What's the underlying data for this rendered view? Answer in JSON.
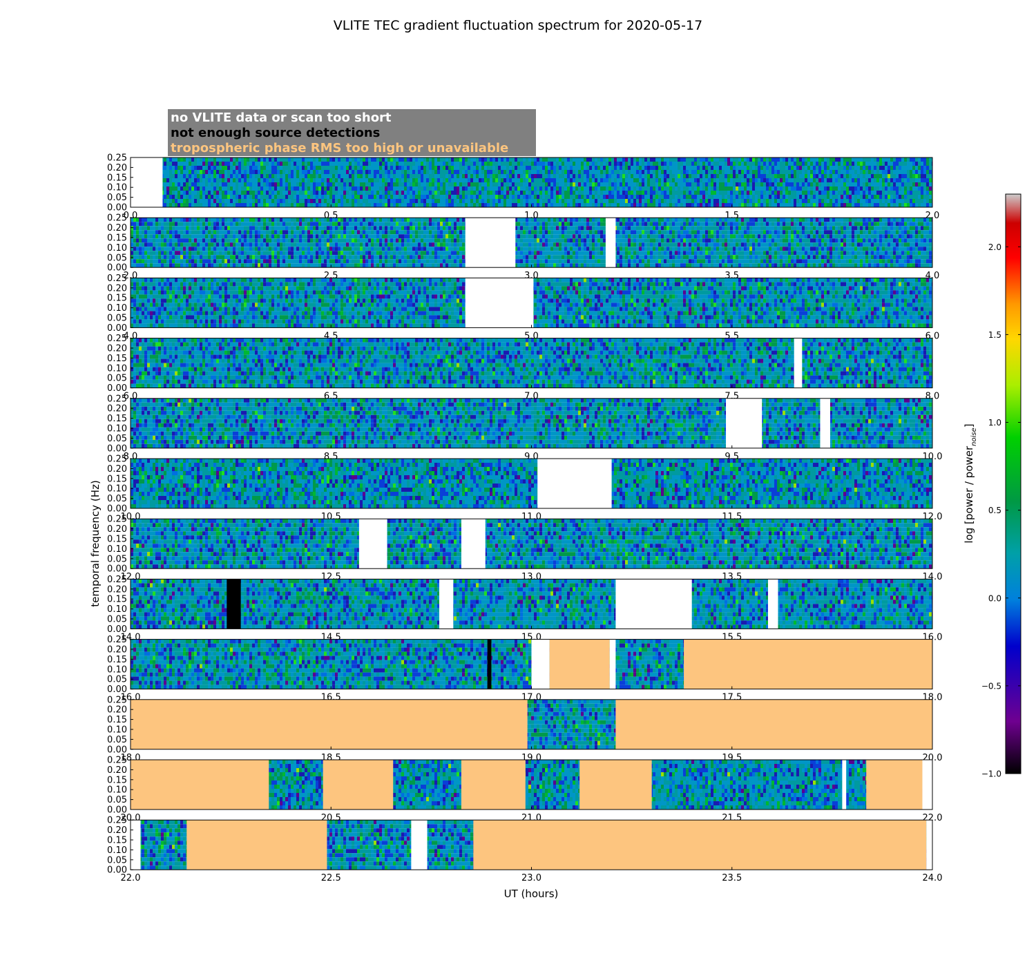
{
  "chart_data": {
    "type": "heatmap",
    "title": "VLITE TEC gradient fluctuation spectrum for 2020-05-17",
    "xlabel": "UT (hours)",
    "ylabel": "temporal frequency (Hz)",
    "ylim": [
      0,
      0.25
    ],
    "yticks": [
      "0.00",
      "0.05",
      "0.10",
      "0.15",
      "0.20",
      "0.25"
    ],
    "colorbar": {
      "label_main": "log [power / power",
      "label_sub": "noise",
      "label_end": "]",
      "range": [
        -1.0,
        2.3
      ],
      "ticks": [
        "−1.0",
        "−0.5",
        "0.0",
        "0.5",
        "1.0",
        "1.5",
        "2.0"
      ],
      "tick_values": [
        -1.0,
        -0.5,
        0.0,
        0.5,
        1.0,
        1.5,
        2.0
      ]
    },
    "legend": [
      {
        "text": "no VLITE data or scan too short",
        "color": "#ffffff"
      },
      {
        "text": "not enough source detections",
        "color": "#000000"
      },
      {
        "text": "tropospheric phase RMS too high or unavailable",
        "color": "#fdc57f"
      }
    ],
    "gap_colors": {
      "no_data": "#ffffff",
      "detections": "#000000",
      "rms": "#fdc57f"
    },
    "panels": [
      {
        "xlim": [
          0.0,
          2.0
        ],
        "xticks": [
          "0.0",
          "0.5",
          "1.0",
          "1.5",
          "2.0"
        ],
        "gaps": [
          {
            "start": 0.0,
            "end": 0.08,
            "flag": "no_data"
          }
        ]
      },
      {
        "xlim": [
          2.0,
          4.0
        ],
        "xticks": [
          "2.0",
          "2.5",
          "3.0",
          "3.5",
          "4.0"
        ],
        "gaps": [
          {
            "start": 2.835,
            "end": 2.96,
            "flag": "no_data"
          },
          {
            "start": 3.185,
            "end": 3.21,
            "flag": "no_data"
          }
        ]
      },
      {
        "xlim": [
          4.0,
          6.0
        ],
        "xticks": [
          "4.0",
          "4.5",
          "5.0",
          "5.5",
          "6.0"
        ],
        "gaps": [
          {
            "start": 4.835,
            "end": 5.005,
            "flag": "no_data"
          }
        ]
      },
      {
        "xlim": [
          6.0,
          8.0
        ],
        "xticks": [
          "6.0",
          "6.5",
          "7.0",
          "7.5",
          "8.0"
        ],
        "gaps": [
          {
            "start": 7.655,
            "end": 7.675,
            "flag": "no_data"
          }
        ]
      },
      {
        "xlim": [
          8.0,
          10.0
        ],
        "xticks": [
          "8.0",
          "8.5",
          "9.0",
          "9.5",
          "10.0"
        ],
        "gaps": [
          {
            "start": 9.485,
            "end": 9.575,
            "flag": "no_data"
          },
          {
            "start": 9.72,
            "end": 9.745,
            "flag": "no_data"
          }
        ]
      },
      {
        "xlim": [
          10.0,
          12.0
        ],
        "xticks": [
          "10.0",
          "10.5",
          "11.0",
          "11.5",
          "12.0"
        ],
        "gaps": [
          {
            "start": 11.015,
            "end": 11.2,
            "flag": "no_data"
          }
        ]
      },
      {
        "xlim": [
          12.0,
          14.0
        ],
        "xticks": [
          "12.0",
          "12.5",
          "13.0",
          "13.5",
          "14.0"
        ],
        "gaps": [
          {
            "start": 12.57,
            "end": 12.64,
            "flag": "no_data"
          },
          {
            "start": 12.825,
            "end": 12.885,
            "flag": "no_data"
          }
        ]
      },
      {
        "xlim": [
          14.0,
          16.0
        ],
        "xticks": [
          "14.0",
          "14.5",
          "15.0",
          "15.5",
          "16.0"
        ],
        "gaps": [
          {
            "start": 14.24,
            "end": 14.275,
            "flag": "detections"
          },
          {
            "start": 14.77,
            "end": 14.805,
            "flag": "no_data"
          },
          {
            "start": 15.21,
            "end": 15.4,
            "flag": "no_data"
          },
          {
            "start": 15.59,
            "end": 15.615,
            "flag": "no_data"
          }
        ]
      },
      {
        "xlim": [
          16.0,
          18.0
        ],
        "xticks": [
          "16.0",
          "16.5",
          "17.0",
          "17.5",
          "18.0"
        ],
        "gaps": [
          {
            "start": 16.89,
            "end": 16.9,
            "flag": "detections"
          },
          {
            "start": 17.0,
            "end": 17.045,
            "flag": "no_data"
          },
          {
            "start": 17.045,
            "end": 17.195,
            "flag": "rms"
          },
          {
            "start": 17.195,
            "end": 17.21,
            "flag": "no_data"
          },
          {
            "start": 17.38,
            "end": 18.0,
            "flag": "rms"
          }
        ]
      },
      {
        "xlim": [
          18.0,
          20.0
        ],
        "xticks": [
          "18.0",
          "18.5",
          "19.0",
          "19.5",
          "20.0"
        ],
        "gaps": [
          {
            "start": 18.0,
            "end": 18.99,
            "flag": "rms"
          },
          {
            "start": 19.21,
            "end": 20.0,
            "flag": "rms"
          }
        ]
      },
      {
        "xlim": [
          20.0,
          22.0
        ],
        "xticks": [
          "20.0",
          "20.5",
          "21.0",
          "21.5",
          "22.0"
        ],
        "gaps": [
          {
            "start": 20.0,
            "end": 20.345,
            "flag": "rms"
          },
          {
            "start": 20.48,
            "end": 20.655,
            "flag": "rms"
          },
          {
            "start": 20.825,
            "end": 20.985,
            "flag": "rms"
          },
          {
            "start": 21.12,
            "end": 21.3,
            "flag": "rms"
          },
          {
            "start": 21.775,
            "end": 21.785,
            "flag": "no_data"
          },
          {
            "start": 21.835,
            "end": 21.975,
            "flag": "rms"
          },
          {
            "start": 21.975,
            "end": 22.0,
            "flag": "no_data"
          }
        ]
      },
      {
        "xlim": [
          22.0,
          24.0
        ],
        "xticks": [
          "22.0",
          "22.5",
          "23.0",
          "23.5",
          "24.0"
        ],
        "gaps": [
          {
            "start": 22.0,
            "end": 22.025,
            "flag": "no_data"
          },
          {
            "start": 22.14,
            "end": 22.49,
            "flag": "rms"
          },
          {
            "start": 22.7,
            "end": 22.74,
            "flag": "no_data"
          },
          {
            "start": 22.855,
            "end": 23.985,
            "flag": "rms"
          },
          {
            "start": 23.985,
            "end": 24.0,
            "flag": "no_data"
          }
        ]
      }
    ]
  }
}
